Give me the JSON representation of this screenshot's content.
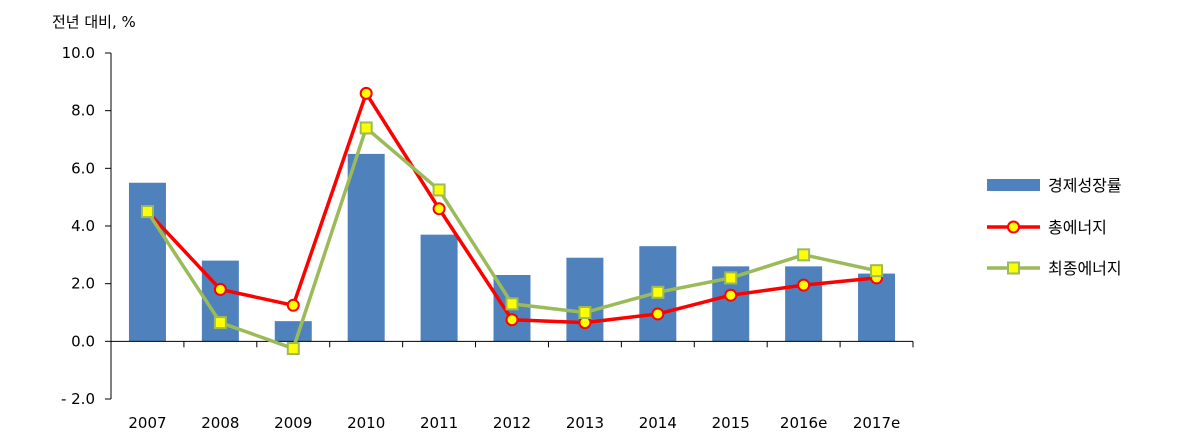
{
  "chart_data": {
    "type": "bar",
    "unit_label": "전년 대비, %",
    "categories": [
      "2007",
      "2008",
      "2009",
      "2010",
      "2011",
      "2012",
      "2013",
      "2014",
      "2015",
      "2016e",
      "2017e"
    ],
    "ylim": [
      -2.0,
      10.0
    ],
    "yticks": [
      -2.0,
      0.0,
      2.0,
      4.0,
      6.0,
      8.0,
      10.0
    ],
    "ytick_labels": [
      "- 2.0",
      "0.0",
      "2.0",
      "4.0",
      "6.0",
      "8.0",
      "10.0"
    ],
    "grid": false,
    "legend_position": "right",
    "series": [
      {
        "name": "경제성장률",
        "kind": "bar",
        "color": "#4f81bd",
        "values": [
          5.5,
          2.8,
          0.7,
          6.5,
          3.7,
          2.3,
          2.9,
          3.3,
          2.6,
          2.6,
          2.35
        ]
      },
      {
        "name": "총에너지",
        "kind": "line",
        "color": "#ff0000",
        "marker": "circle",
        "marker_fill": "#ffff00",
        "values": [
          4.5,
          1.8,
          1.25,
          8.6,
          4.6,
          0.75,
          0.65,
          0.95,
          1.6,
          1.95,
          2.2
        ]
      },
      {
        "name": "최종에너지",
        "kind": "line",
        "color": "#9bbb59",
        "marker": "square",
        "marker_fill": "#ffff00",
        "values": [
          4.5,
          0.65,
          -0.25,
          7.4,
          5.25,
          1.3,
          1.0,
          1.7,
          2.2,
          3.0,
          2.45
        ]
      }
    ]
  }
}
